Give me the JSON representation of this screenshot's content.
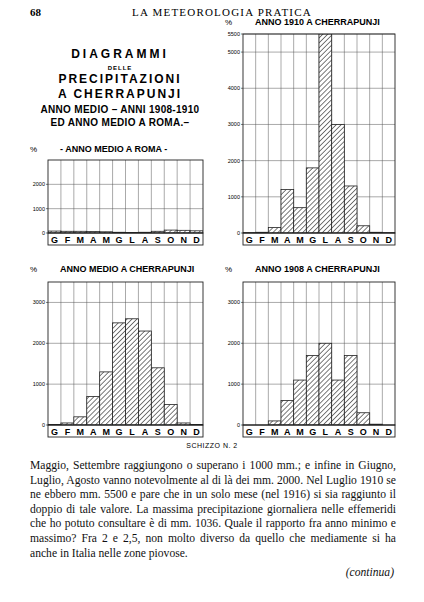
{
  "header": {
    "page_number": "68",
    "journal": "LA METEOROLOGIA PRATICA"
  },
  "figure_title": [
    "DIAGRAMMI",
    "DELLE",
    "PRECIPITAZIONI",
    "A CHERRAPUNJI",
    "ANNO MEDIO – ANNI 1908-1910",
    "ED ANNO MEDIO A ROMA.–"
  ],
  "chart_data": [
    {
      "type": "bar",
      "title": "ANNO 1910 A CHERRAPUNJI",
      "ylabel": "%",
      "categories": [
        "G",
        "F",
        "M",
        "A",
        "M",
        "G",
        "L",
        "A",
        "S",
        "O",
        "N",
        "D"
      ],
      "values": [
        10,
        20,
        150,
        1200,
        700,
        1800,
        5500,
        3000,
        1300,
        200,
        20,
        10
      ],
      "ylim": [
        0,
        5500
      ],
      "yticks": [
        0,
        1000,
        2000,
        3000,
        4000,
        5000,
        5500
      ],
      "grid": true,
      "color": "#222222"
    },
    {
      "type": "bar",
      "title": "- ANNO MEDIO A ROMA -",
      "ylabel": "%",
      "categories": [
        "G",
        "F",
        "M",
        "A",
        "M",
        "G",
        "L",
        "A",
        "S",
        "O",
        "N",
        "D"
      ],
      "values": [
        80,
        70,
        70,
        60,
        50,
        30,
        20,
        30,
        70,
        120,
        110,
        90
      ],
      "ylim": [
        0,
        3000
      ],
      "yticks": [
        0,
        1000,
        2000
      ],
      "grid": true,
      "color": "#222222"
    },
    {
      "type": "bar",
      "title": "ANNO MEDIO A CHERRAPUNJI",
      "ylabel": "%",
      "categories": [
        "G",
        "F",
        "M",
        "A",
        "M",
        "G",
        "L",
        "A",
        "S",
        "O",
        "N",
        "D"
      ],
      "values": [
        10,
        50,
        200,
        700,
        1300,
        2500,
        2600,
        2300,
        1400,
        500,
        50,
        10
      ],
      "ylim": [
        0,
        3500
      ],
      "yticks": [
        0,
        1000,
        2000,
        3000
      ],
      "grid": true,
      "color": "#222222"
    },
    {
      "type": "bar",
      "title": "ANNO 1908 A CHERRAPUNJI",
      "ylabel": "%",
      "categories": [
        "G",
        "F",
        "M",
        "A",
        "M",
        "G",
        "L",
        "A",
        "S",
        "O",
        "N",
        "D"
      ],
      "values": [
        0,
        0,
        100,
        600,
        1100,
        1700,
        2000,
        1100,
        1700,
        300,
        20,
        0
      ],
      "ylim": [
        0,
        3500
      ],
      "yticks": [
        0,
        1000,
        2000,
        3000
      ],
      "grid": true,
      "color": "#222222"
    }
  ],
  "caption": "SCHIZZO N. 2",
  "body": "Maggio, Settembre raggiungono o superano i 1000 mm.; e infine in Giugno, Luglio, Agosto vanno notevolmente al di là dei mm. 2000. Nel Luglio 1910 se ne ebbero mm. 5500 e pare che in un solo mese (nel 1916) si sia raggiunto il doppio di tale valore. La massima precipitazione giornaliera nelle effemeridi che ho potuto consultare è di mm. 1036. Quale il rapporto fra anno minimo e massimo? Fra 2 e 2,5, non molto diverso da quello che mediamente si ha anche in Italia nelle zone piovose.",
  "continuation": "(continua)"
}
